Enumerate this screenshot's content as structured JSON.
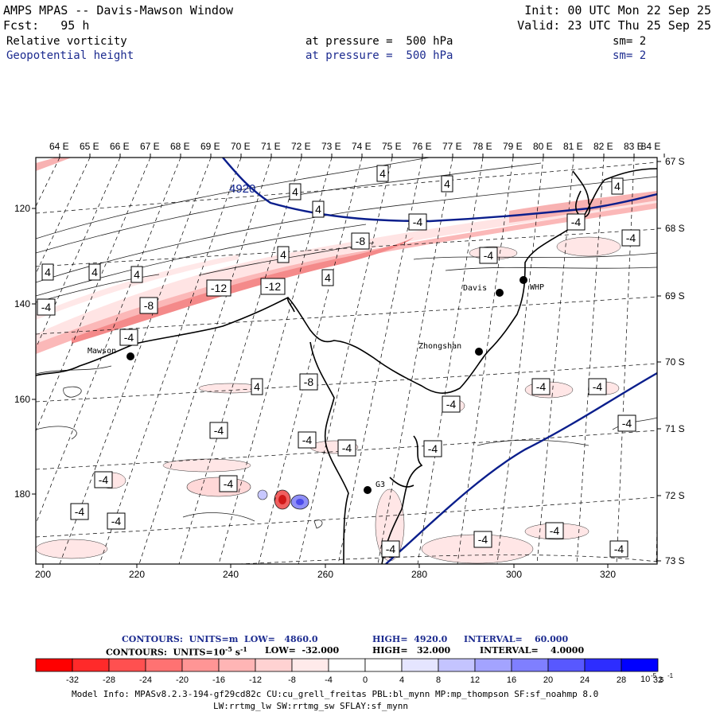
{
  "header": {
    "title": "AMPS MPAS -- Davis-Mawson Window",
    "forecast": "Fcst:   95 h",
    "init": "Init: 00 UTC Mon 22 Sep 25",
    "valid": "Valid: 23 UTC Thu 25 Sep 25",
    "field1": {
      "name": "Relative vorticity",
      "level": "at pressure =  500 hPa",
      "smooth": "sm= 2"
    },
    "field2": {
      "name": "Geopotential height",
      "level": "at pressure =  500 hPa",
      "smooth": "sm= 2"
    }
  },
  "map": {
    "top_labels": [
      "64 E",
      "65 E",
      "66 E",
      "67 E",
      "68 E",
      "69 E",
      "70 E",
      "71 E",
      "72 E",
      "73 E",
      "74 E",
      "75 E",
      "76 E",
      "77 E",
      "78 E",
      "79 E",
      "80 E",
      "81 E",
      "82 E",
      "83 E",
      "84 E"
    ],
    "right_labels": [
      "67 S",
      "68 S",
      "69 S",
      "70 S",
      "71 S",
      "72 S",
      "73 S"
    ],
    "left_labels": [
      "120",
      "140",
      "160",
      "180"
    ],
    "bottom_labels": [
      "200",
      "220",
      "240",
      "260",
      "280",
      "300",
      "320"
    ],
    "stations": [
      {
        "name": "Mawson"
      },
      {
        "name": "Davis"
      },
      {
        "name": "WHP"
      },
      {
        "name": "Zhongshan"
      },
      {
        "name": "G3"
      }
    ],
    "height_label": "4920",
    "box_labels": [
      "4",
      "4",
      "4",
      "4",
      "4",
      "-4",
      "-4",
      "-4",
      "-4",
      "4",
      "-8",
      "4",
      "4",
      "4",
      "-4",
      "-4",
      "4",
      "-12",
      "-12",
      "-8",
      "-8",
      "4",
      "-4",
      "-4",
      "-4",
      "-4",
      "-4",
      "-4",
      "-4",
      "-4",
      "-4",
      "-4",
      "-4",
      "-4",
      "-4",
      "-4",
      "-4",
      "-4",
      "-4",
      "4",
      "-4",
      "-4",
      "-4",
      "-4",
      "-4"
    ],
    "colors": {
      "height": "#0a1e8c",
      "coast": "#000000",
      "lat_lines": "#000000",
      "pos_shade": "#f8a0a0",
      "neg_shade": "#7b7bf0"
    }
  },
  "footer": {
    "line1_prefix": "CONTOURS:  UNITS=m  LOW=   4860.0",
    "line1_high": "HIGH=  4920.0",
    "line1_interval": "INTERVAL=    60.000",
    "line2_prefix": "CONTOURS:  UNITS=10",
    "line2_exp": "-5",
    "line2_unit": " s",
    "line2_unit_exp": "-1",
    "line2_low": "LOW=  -32.000",
    "line2_high": "HIGH=   32.000",
    "line2_interval": "INTERVAL=    4.0000",
    "colorbar_ticks": [
      "-32",
      "-28",
      "-24",
      "-20",
      "-16",
      "-12",
      "-8",
      "-4",
      "0",
      "4",
      "8",
      "12",
      "16",
      "20",
      "24",
      "28",
      "32"
    ],
    "colorbar_unit": "10",
    "colorbar_unit_exp": "-5",
    "colorbar_unit_s": " s",
    "colorbar_unit_s_exp": "-1",
    "colorbar_colors": [
      "#ff0000",
      "#ff2a2a",
      "#ff5050",
      "#ff7272",
      "#ff9595",
      "#ffb5b5",
      "#ffd2d2",
      "#ffeaea",
      "#ffffff",
      "#ffffff",
      "#e5e5ff",
      "#c4c4ff",
      "#a3a3ff",
      "#7f7fff",
      "#5858ff",
      "#2d2dff",
      "#0000ff"
    ],
    "model_info": "Model Info: MPASv8.2.3-194-gf29cd82c CU:cu_grell_freitas PBL:bl_mynn MP:mp_thompson SF:sf_noahmp 8.0",
    "model_info2": "LW:rrtmg_lw SW:rrtmg_sw SFLAY:sf_mynn"
  }
}
